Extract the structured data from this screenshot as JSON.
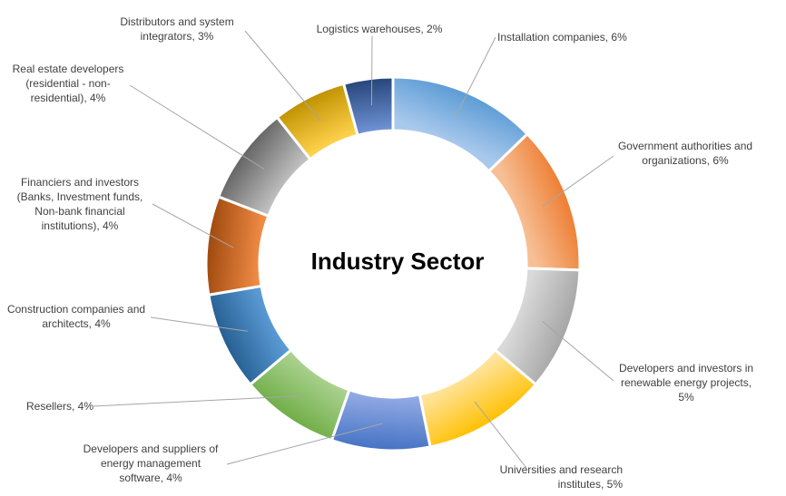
{
  "chart_data": {
    "type": "doughnut",
    "title": "Industry Sector",
    "legend": "none",
    "slices": [
      {
        "label": "Installation  companies, 6%",
        "value": 6,
        "color_light": "#a9c9ec",
        "color_dark": "#5b9bd5"
      },
      {
        "label": "Government authorities and organizations,  6%",
        "value": 6,
        "color_light": "#f7bf96",
        "color_dark": "#ed7d31"
      },
      {
        "label": "Developers and investors in renewable energy projects, 5%",
        "value": 5,
        "color_light": "#d9d9d9",
        "color_dark": "#a5a5a5"
      },
      {
        "label": "Universities and research institutes, 5%",
        "value": 5,
        "color_light": "#ffe39a",
        "color_dark": "#ffc000"
      },
      {
        "label": "Developers and suppliers of energy management software, 4%",
        "value": 4,
        "color_light": "#91a9e3",
        "color_dark": "#4472c4"
      },
      {
        "label": "Resellers, 4%",
        "value": 4,
        "color_light": "#a9d18e",
        "color_dark": "#70ad47"
      },
      {
        "label": "Construction companies and architects, 4%",
        "value": 4,
        "color_light": "#5b9bd5",
        "color_dark": "#255e91"
      },
      {
        "label": "Financiers and investors (Banks,  Investment funds, Non-bank financial institutions), 4%",
        "value": 4,
        "color_light": "#f08b45",
        "color_dark": "#9e480e"
      },
      {
        "label": "Real estate developers (residential - non-residential), 4%",
        "value": 4,
        "color_light": "#bfbfbf",
        "color_dark": "#636363"
      },
      {
        "label": "Distributors and system integrators, 3%",
        "value": 3,
        "color_light": "#ffd34d",
        "color_dark": "#bf9000"
      },
      {
        "label": "Logistics  warehouses, 2%",
        "value": 2,
        "color_light": "#6f93d6",
        "color_dark": "#264478"
      }
    ]
  }
}
